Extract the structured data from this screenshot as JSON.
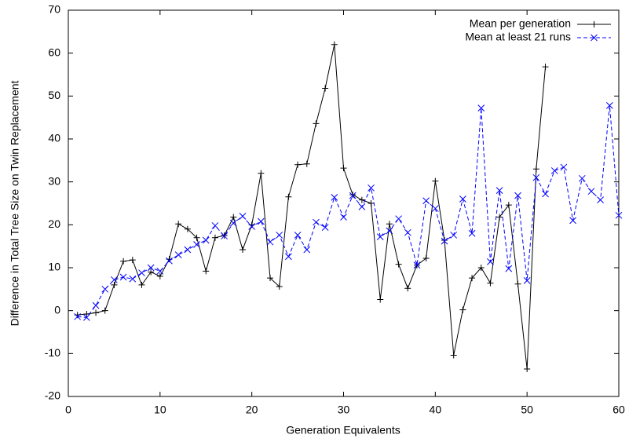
{
  "chart_data": {
    "type": "line",
    "x_label": "Generation Equivalents",
    "y_label": "Difference in Total Tree Size on Twin Replacement",
    "x": [
      1,
      2,
      3,
      4,
      5,
      6,
      7,
      8,
      9,
      10,
      11,
      12,
      13,
      14,
      15,
      16,
      17,
      18,
      19,
      20,
      21,
      22,
      23,
      24,
      25,
      26,
      27,
      28,
      29,
      30,
      31,
      32,
      33,
      34,
      35,
      36,
      37,
      38,
      39,
      40,
      41,
      42,
      43,
      44,
      45,
      46,
      47,
      48,
      49,
      50,
      51,
      52,
      53,
      54,
      55,
      56,
      57,
      58,
      59,
      60
    ],
    "series": [
      {
        "name": "Mean per generation",
        "color": "#000000",
        "marker": "+",
        "dash": false,
        "values": [
          -1,
          -0.8,
          -0.5,
          0,
          6,
          11.5,
          11.8,
          6,
          9,
          8,
          12,
          20.2,
          19,
          17,
          9.2,
          17,
          17.5,
          21.8,
          14.2,
          20,
          32,
          7.6,
          5.6,
          26.5,
          34,
          34.2,
          43.6,
          51.8,
          62,
          33.2,
          27,
          25.8,
          25,
          2.6,
          20.2,
          10.8,
          5.2,
          10.6,
          12.2,
          30.2,
          16.4,
          -10.4,
          0.2,
          7.6,
          10,
          6.4,
          21.8,
          24.6,
          6.2,
          -13.6,
          33,
          56.8,
          null,
          null,
          null,
          null,
          null,
          null,
          null,
          null
        ]
      },
      {
        "name": "Mean at least 21 runs",
        "color": "#0000ff",
        "marker": "x",
        "dash": true,
        "values": [
          -1.4,
          -1.6,
          1.2,
          5,
          7.2,
          7.8,
          7.4,
          8.8,
          10,
          9.2,
          11.6,
          13,
          14.2,
          15.4,
          16.4,
          19.8,
          17.4,
          20.4,
          22,
          19.6,
          20.8,
          16,
          17.6,
          12.6,
          17.6,
          14.2,
          20.6,
          19.4,
          26.4,
          21.8,
          26.8,
          24.2,
          28.6,
          17.2,
          18.6,
          21.4,
          18.2,
          10.6,
          25.6,
          23.8,
          16.2,
          17.6,
          26,
          18,
          47.2,
          11.4,
          28,
          9.8,
          26.8,
          7,
          31,
          27.2,
          32.6,
          33.4,
          21,
          30.8,
          27.8,
          25.8,
          47.8,
          22.2
        ]
      }
    ],
    "xlim": [
      0,
      60
    ],
    "xticks": [
      0,
      10,
      20,
      30,
      40,
      50,
      60
    ],
    "ylim": [
      -20,
      70
    ],
    "yticks": [
      -20,
      -10,
      0,
      10,
      20,
      30,
      40,
      50,
      60,
      70
    ],
    "legend": "top-right",
    "grid": false
  }
}
